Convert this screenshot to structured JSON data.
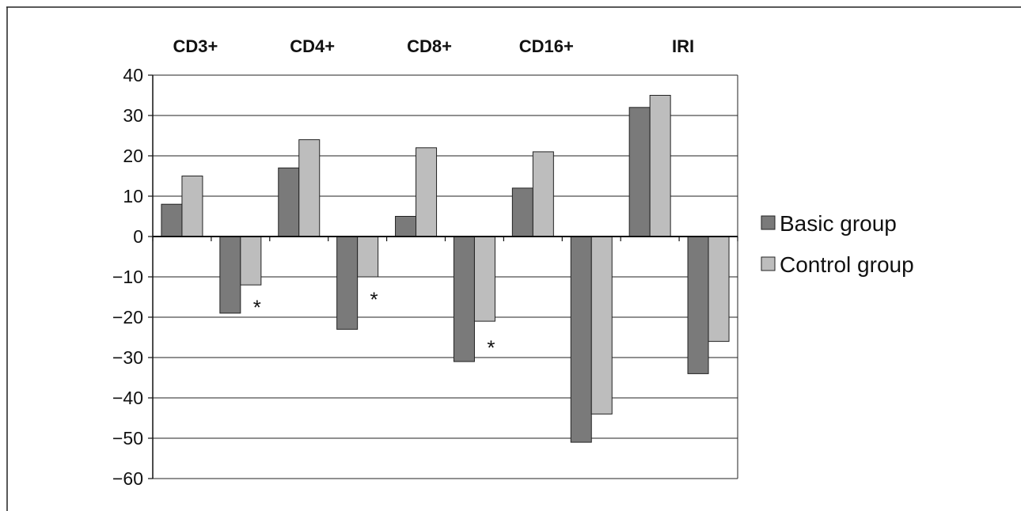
{
  "chart_data": {
    "type": "bar",
    "title": "",
    "xlabel": "",
    "ylabel": "",
    "ylim": [
      -60,
      40
    ],
    "yticks": [
      40,
      30,
      20,
      10,
      0,
      -10,
      -20,
      -30,
      -40,
      -50,
      -60
    ],
    "ytick_labels": [
      "40",
      "30",
      "20",
      "10",
      "0",
      "−10",
      "−20",
      "−30",
      "−40",
      "−50",
      "−60"
    ],
    "grid": true,
    "legend_position": "right",
    "category_labels": [
      "CD3+",
      "CD4+",
      "CD8+",
      "CD16+",
      "IRI"
    ],
    "series": [
      {
        "name": "Basic group",
        "color": "#7a7a7a",
        "values": [
          8,
          -19,
          17,
          -23,
          5,
          -31,
          12,
          -51,
          32,
          -34
        ]
      },
      {
        "name": "Control group",
        "color": "#bdbdbd",
        "values": [
          15,
          -12,
          24,
          -10,
          22,
          -21,
          21,
          -44,
          35,
          -26
        ]
      }
    ],
    "annotations": [
      {
        "text": "*",
        "group": 1,
        "y": -17
      },
      {
        "text": "*",
        "group": 3,
        "y": -15
      },
      {
        "text": "*",
        "group": 5,
        "y": -27
      }
    ]
  }
}
